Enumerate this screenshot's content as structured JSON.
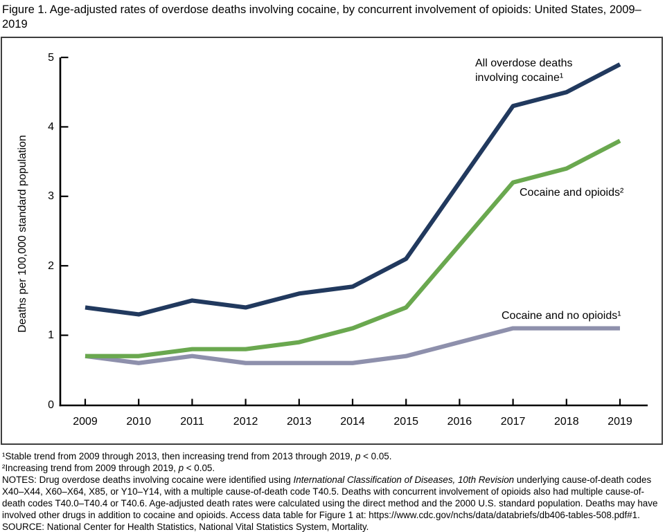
{
  "title": "Figure 1. Age-adjusted rates of overdose deaths involving cocaine, by concurrent involvement of opioids: United States, 2009–2019",
  "chart_data": {
    "type": "line",
    "x": [
      2009,
      2010,
      2011,
      2012,
      2013,
      2014,
      2015,
      2016,
      2017,
      2018,
      2019
    ],
    "series": [
      {
        "id": "all-cocaine",
        "name": "All overdose deaths involving cocaine",
        "label": "All overdose deaths\ninvolving cocaine¹",
        "color": "#21395e",
        "values": [
          1.4,
          1.3,
          1.5,
          1.4,
          1.6,
          1.7,
          2.1,
          3.2,
          4.3,
          4.5,
          4.9
        ]
      },
      {
        "id": "cocaine-and-opioids",
        "name": "Cocaine and opioids",
        "label": "Cocaine and opioids²",
        "color": "#6aa84f",
        "values": [
          0.7,
          0.7,
          0.8,
          0.8,
          0.9,
          1.1,
          1.4,
          2.3,
          3.2,
          3.4,
          3.8
        ]
      },
      {
        "id": "cocaine-and-no-opioids",
        "name": "Cocaine and no opioids",
        "label": "Cocaine and no opioids¹",
        "color": "#8e90ac",
        "values": [
          0.7,
          0.6,
          0.7,
          0.6,
          0.6,
          0.6,
          0.7,
          0.9,
          1.1,
          1.1,
          1.1
        ]
      }
    ],
    "ylabel": "Deaths per 100,000 standard population",
    "xlabel": "",
    "ylim": [
      0,
      5
    ],
    "yticks": [
      0,
      1,
      2,
      3,
      4,
      5
    ],
    "grid": false,
    "legend_position": "inline-annotations",
    "axis_color": "#000000"
  },
  "footnotes": {
    "fn1": [
      {
        "t": "¹Stable trend from 2009 through 2013, then increasing trend from 2013 through 2019, "
      },
      {
        "t": "p",
        "i": true
      },
      {
        "t": " < 0.05."
      }
    ],
    "fn2": [
      {
        "t": "²Increasing trend from 2009 through 2019, "
      },
      {
        "t": "p",
        "i": true
      },
      {
        "t": " < 0.05."
      }
    ],
    "notes": [
      {
        "t": "NOTES: Drug overdose deaths involving cocaine were identified using "
      },
      {
        "t": "International Classification of Diseases, 10th Revision",
        "i": true
      },
      {
        "t": " underlying cause-of-death codes X40–X44, X60–X64, X85, or Y10–Y14, with a multiple cause-of-death code T40.5. Deaths with concurrent involvement of opioids also had multiple cause-of-death codes T40.0–T40.4 or T40.6. Age-adjusted death rates were calculated using the direct method and the 2000 U.S. standard population. Deaths may have involved other drugs in addition to cocaine and opioids. Access data table for Figure 1 at: https://www.cdc.gov/nchs/data/databriefs/db406-tables-508.pdf#1."
      }
    ],
    "source": "SOURCE: National Center for Health Statistics, National Vital Statistics System, Mortality."
  }
}
